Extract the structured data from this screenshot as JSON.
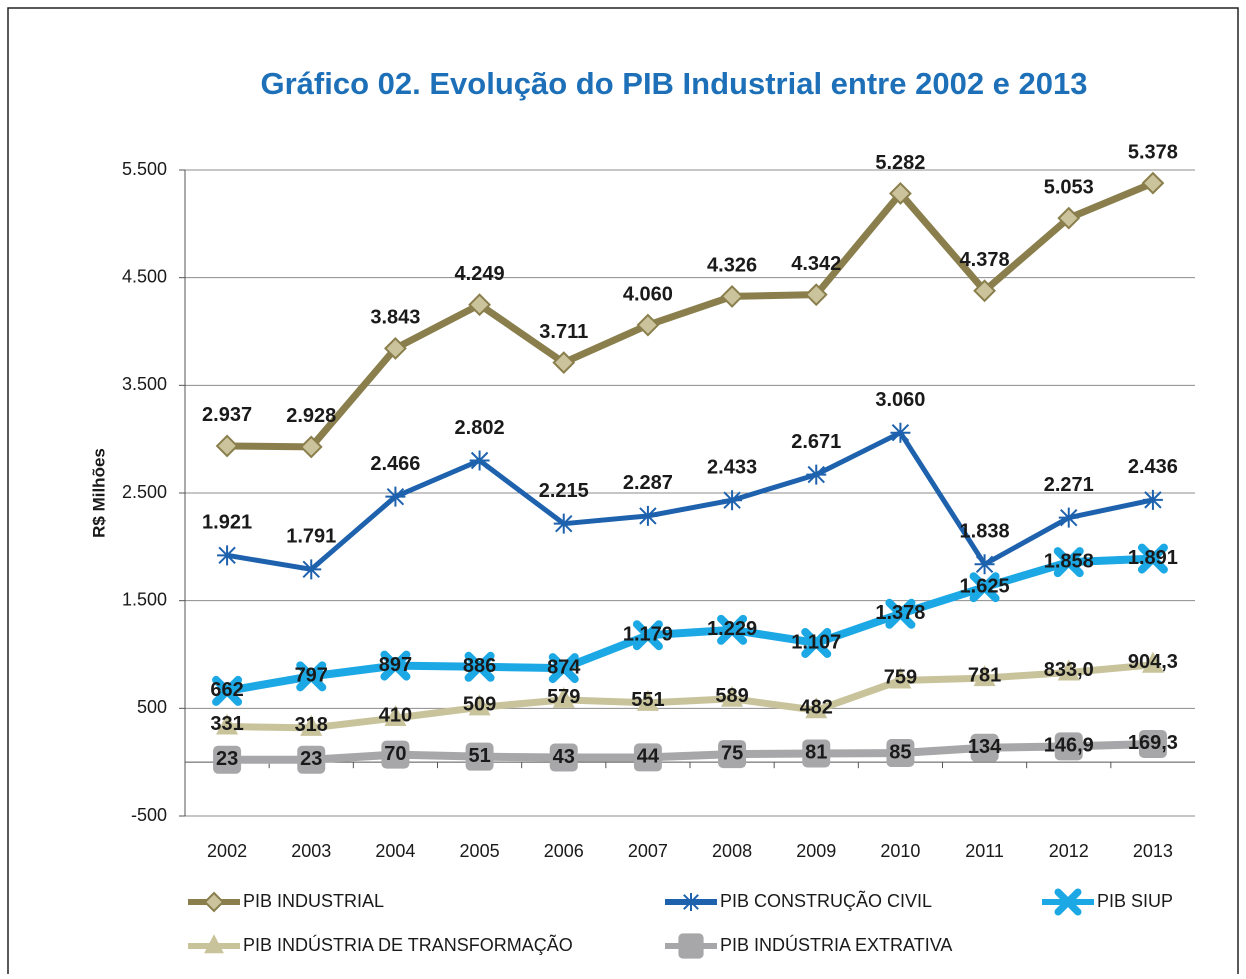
{
  "chart_data": {
    "type": "line",
    "title": "Gráfico 02. Evolução do PIB Industrial entre 2002 e 2013",
    "y_label": "R$ Milhões",
    "categories": [
      "2002",
      "2003",
      "2004",
      "2005",
      "2006",
      "2007",
      "2008",
      "2009",
      "2010",
      "2011",
      "2012",
      "2013"
    ],
    "ylim": [
      -500,
      5500
    ],
    "yticks": [
      {
        "value": -500,
        "label": "-500"
      },
      500,
      {
        "value": 1500,
        "label": "1.500"
      },
      {
        "value": 2500,
        "label": "2.500"
      },
      {
        "value": 3500,
        "label": "3.500"
      },
      {
        "value": 4500,
        "label": "4.500"
      },
      {
        "value": 5500,
        "label": "5.500"
      }
    ],
    "grid": true,
    "legend": "bottom",
    "series": [
      {
        "name": "PIB INDUSTRIAL",
        "color": "#8a7f4c",
        "marker": "diamond",
        "marker_color": "#cbc39c",
        "values": [
          2937,
          2928,
          3843,
          4249,
          3711,
          4060,
          4326,
          4342,
          5282,
          4378,
          5053,
          5378
        ],
        "value_labels": [
          "2.937",
          "2.928",
          "3.843",
          "4.249",
          "3.711",
          "4.060",
          "4.326",
          "4.342",
          "5.282",
          "4.378",
          "5.053",
          "5.378"
        ]
      },
      {
        "name": "PIB CONSTRUÇÃO CIVIL",
        "color": "#1e62ae",
        "marker": "star",
        "marker_color": "#1e62ae",
        "values": [
          1921,
          1791,
          2466,
          2802,
          2215,
          2287,
          2433,
          2671,
          3060,
          1838,
          2271,
          2436
        ],
        "value_labels": [
          "1.921",
          "1.791",
          "2.466",
          "2.802",
          "2.215",
          "2.287",
          "2.433",
          "2.671",
          "3.060",
          "1.838",
          "2.271",
          "2.436"
        ]
      },
      {
        "name": "PIB SIUP",
        "color": "#1ba8e4",
        "marker": "x",
        "marker_color": "#1ba8e4",
        "values": [
          662,
          797,
          897,
          886,
          874,
          1179,
          1229,
          1107,
          1378,
          1625,
          1858,
          1891
        ],
        "value_labels": [
          "662",
          "797",
          "897",
          "886",
          "874",
          "1.179",
          "1.229",
          "1.107",
          "1.378",
          "1.625",
          "1.858",
          "1.891"
        ]
      },
      {
        "name": "PIB INDÚSTRIA DE TRANSFORMAÇÃO",
        "color": "#c9c39b",
        "marker": "triangle",
        "marker_color": "#c9c39b",
        "values": [
          331,
          318,
          410,
          509,
          579,
          551,
          589,
          482,
          759,
          781,
          833.0,
          904.3
        ],
        "value_labels": [
          "331",
          "318",
          "410",
          "509",
          "579",
          "551",
          "589",
          "482",
          "759",
          "781",
          "833,0",
          "904,3"
        ]
      },
      {
        "name": "PIB INDÚSTRIA EXTRATIVA",
        "color": "#a7a7a9",
        "marker": "square",
        "marker_color": "#a7a7a9",
        "values": [
          23,
          23,
          70,
          51,
          43,
          44,
          75,
          81,
          85,
          134,
          146.9,
          169.3
        ],
        "value_labels": [
          "23",
          "23",
          "70",
          "51",
          "43",
          "44",
          "75",
          "81",
          "85",
          "134",
          "146,9",
          "169,3"
        ]
      }
    ]
  }
}
